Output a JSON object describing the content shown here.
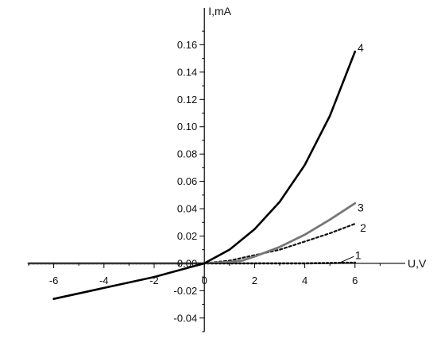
{
  "chart_data": {
    "type": "line",
    "title": "",
    "xlabel": "U,V",
    "ylabel": "I,mA",
    "xlim": [
      -7,
      8
    ],
    "ylim": [
      -0.05,
      0.18
    ],
    "grid": false,
    "x_ticks": [
      -6,
      -4,
      -2,
      0,
      2,
      4,
      6
    ],
    "x_tick_labels": [
      "-6",
      "-4",
      "-2",
      "0",
      "2",
      "4",
      "6"
    ],
    "y_ticks": [
      -0.04,
      -0.02,
      0.0,
      0.02,
      0.04,
      0.06,
      0.08,
      0.1,
      0.12,
      0.14,
      0.16
    ],
    "y_tick_labels": [
      "-0.04",
      "-0.02",
      "0.00",
      "0.02",
      "0.04",
      "0.06",
      "0.08",
      "0.10",
      "0.12",
      "0.14",
      "0.16"
    ],
    "series": [
      {
        "name": "1",
        "style": "dotted",
        "color": "#111111",
        "x": [
          -7,
          -6,
          -4,
          -2,
          0,
          2,
          4,
          6
        ],
        "y": [
          0,
          0,
          0,
          0,
          0,
          0,
          0,
          0.0005
        ]
      },
      {
        "name": "2",
        "style": "dashed",
        "color": "#111111",
        "x": [
          -7,
          -6,
          -4,
          -2,
          0,
          1,
          2,
          3,
          4,
          5,
          6
        ],
        "y": [
          0,
          0,
          0,
          0,
          0,
          0.002,
          0.006,
          0.01,
          0.016,
          0.022,
          0.029
        ]
      },
      {
        "name": "3",
        "style": "solid",
        "color": "#777777",
        "x": [
          -7,
          -6,
          -4,
          -2,
          0,
          1,
          1.5,
          2,
          3,
          4,
          5,
          6
        ],
        "y": [
          0,
          0,
          0,
          0,
          0,
          0.001,
          0.002,
          0.005,
          0.012,
          0.021,
          0.032,
          0.044
        ]
      },
      {
        "name": "4",
        "style": "solid",
        "color": "#000000",
        "x": [
          -6,
          -5,
          -4,
          -3,
          -2,
          -1,
          0,
          1,
          2,
          3,
          4,
          5,
          6
        ],
        "y": [
          -0.026,
          -0.022,
          -0.018,
          -0.014,
          -0.01,
          -0.005,
          0,
          0.01,
          0.025,
          0.045,
          0.072,
          0.108,
          0.155
        ]
      }
    ]
  }
}
